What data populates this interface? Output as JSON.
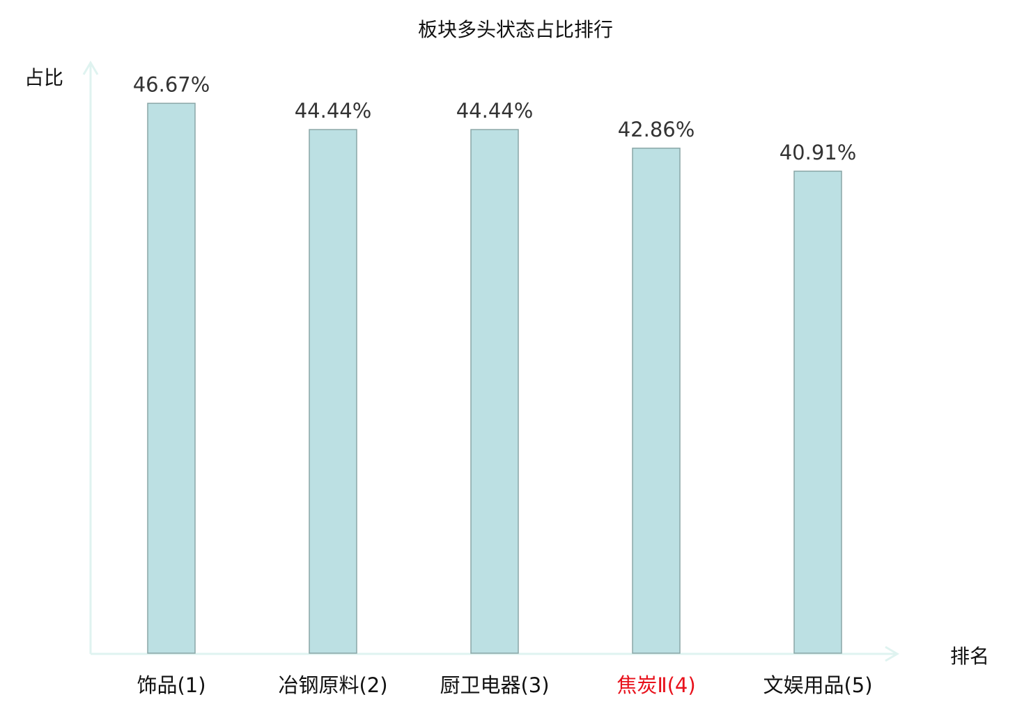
{
  "chart_data": {
    "type": "bar",
    "title": "板块多头状态占比排行",
    "xlabel": "排名",
    "ylabel": "占比",
    "ylim": [
      0,
      50
    ],
    "grid": false,
    "categories": [
      "饰品(1)",
      "冶钢原料(2)",
      "厨卫电器(3)",
      "焦炭Ⅱ(4)",
      "文娱用品(5)"
    ],
    "values": [
      46.67,
      44.44,
      44.44,
      42.86,
      40.91
    ],
    "data_labels": [
      "46.67%",
      "44.44%",
      "44.44%",
      "42.86%",
      "40.91%"
    ],
    "highlight_index": 3,
    "colors": {
      "bar_fill": "#bce0e3",
      "bar_stroke": "#8aa6a6",
      "axis": "#dff3f0",
      "label": "#333333",
      "highlight": "#e8111b"
    }
  }
}
